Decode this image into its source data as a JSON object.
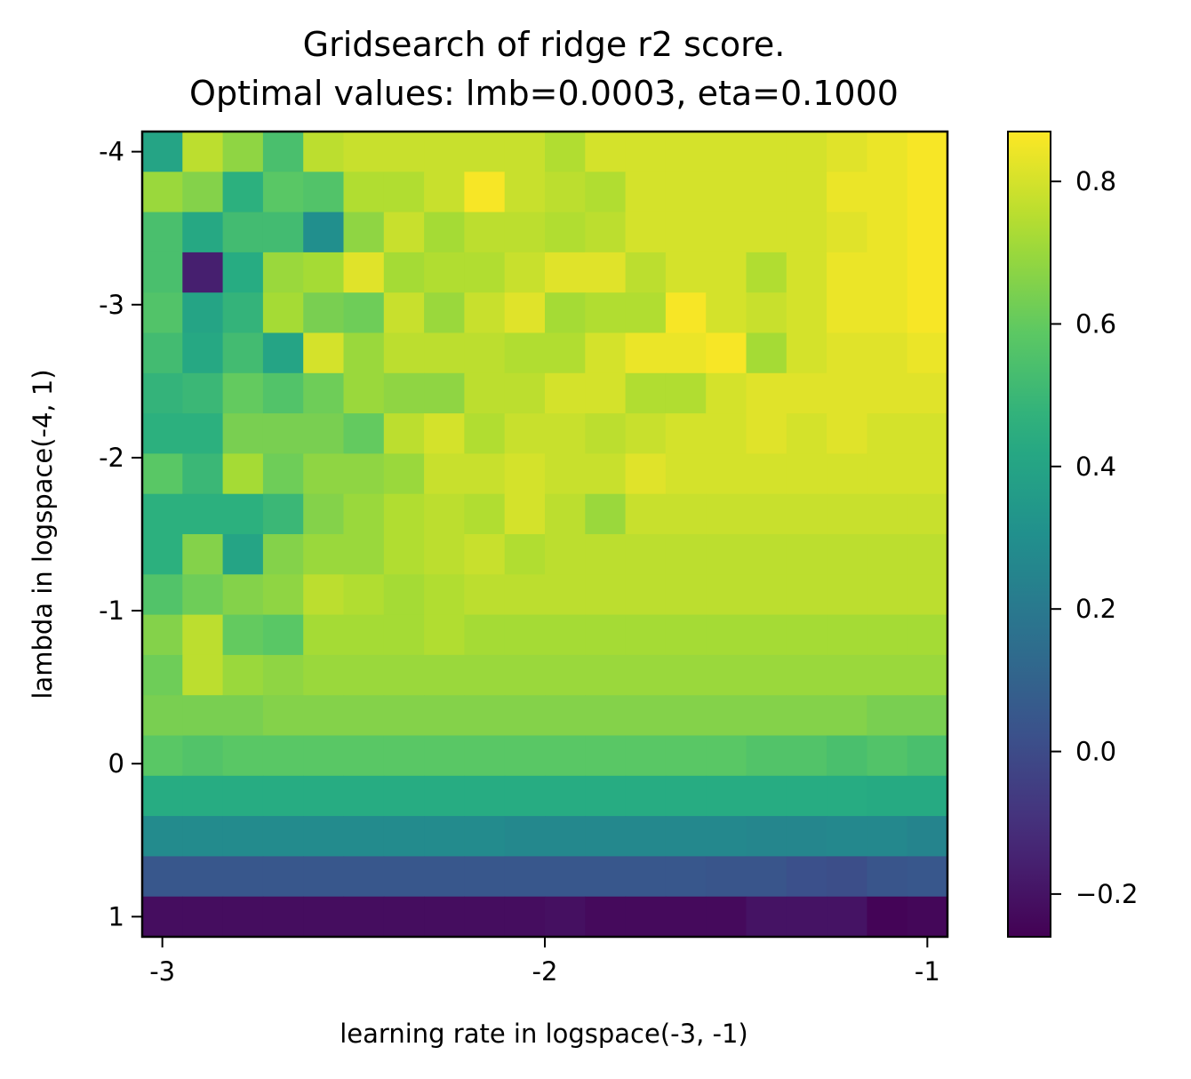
{
  "chart_data": {
    "type": "heatmap",
    "title": "Gridsearch of ridge r2 score.",
    "subtitle": "Optimal values: lmb=0.0003, eta=0.1000",
    "xlabel": "learning rate in logspace(-3, -1)",
    "ylabel": "lambda in logspace(-4, 1)",
    "colormap": "viridis",
    "color_range": [
      -0.26,
      0.87
    ],
    "x_range": [
      -3,
      -1
    ],
    "y_range": [
      -4,
      1
    ],
    "x_ticks": [
      {
        "value": -3,
        "label": "-3"
      },
      {
        "value": -2,
        "label": "-2"
      },
      {
        "value": -1,
        "label": "-1"
      }
    ],
    "y_ticks": [
      {
        "value": -4,
        "label": "-4"
      },
      {
        "value": -3,
        "label": "-3"
      },
      {
        "value": -2,
        "label": "-2"
      },
      {
        "value": -1,
        "label": "-1"
      },
      {
        "value": 0,
        "label": "0"
      },
      {
        "value": 1,
        "label": "1"
      }
    ],
    "colorbar_ticks": [
      {
        "value": 0.8,
        "label": "0.8"
      },
      {
        "value": 0.6,
        "label": "0.6"
      },
      {
        "value": 0.4,
        "label": "0.4"
      },
      {
        "value": 0.2,
        "label": "0.2"
      },
      {
        "value": 0.0,
        "label": "0.0"
      },
      {
        "value": -0.2,
        "label": "−0.2"
      }
    ],
    "values": [
      [
        0.4,
        0.76,
        0.68,
        0.54,
        0.76,
        0.78,
        0.78,
        0.78,
        0.78,
        0.78,
        0.74,
        0.8,
        0.8,
        0.8,
        0.8,
        0.8,
        0.8,
        0.82,
        0.84,
        0.86
      ],
      [
        0.7,
        0.66,
        0.46,
        0.58,
        0.56,
        0.74,
        0.74,
        0.78,
        0.86,
        0.78,
        0.76,
        0.74,
        0.8,
        0.8,
        0.8,
        0.8,
        0.8,
        0.84,
        0.84,
        0.86
      ],
      [
        0.54,
        0.42,
        0.52,
        0.52,
        0.3,
        0.68,
        0.78,
        0.72,
        0.76,
        0.76,
        0.74,
        0.76,
        0.8,
        0.8,
        0.8,
        0.8,
        0.8,
        0.82,
        0.84,
        0.86
      ],
      [
        0.54,
        -0.16,
        0.44,
        0.7,
        0.72,
        0.82,
        0.72,
        0.74,
        0.74,
        0.78,
        0.82,
        0.82,
        0.76,
        0.8,
        0.8,
        0.74,
        0.8,
        0.84,
        0.84,
        0.86
      ],
      [
        0.56,
        0.4,
        0.48,
        0.72,
        0.64,
        0.62,
        0.78,
        0.7,
        0.78,
        0.82,
        0.72,
        0.74,
        0.74,
        0.86,
        0.8,
        0.78,
        0.8,
        0.84,
        0.84,
        0.86
      ],
      [
        0.52,
        0.42,
        0.52,
        0.4,
        0.8,
        0.7,
        0.76,
        0.76,
        0.76,
        0.74,
        0.74,
        0.8,
        0.84,
        0.84,
        0.86,
        0.72,
        0.8,
        0.82,
        0.82,
        0.84
      ],
      [
        0.48,
        0.5,
        0.6,
        0.56,
        0.62,
        0.7,
        0.68,
        0.68,
        0.76,
        0.76,
        0.8,
        0.8,
        0.74,
        0.74,
        0.8,
        0.82,
        0.82,
        0.82,
        0.82,
        0.82
      ],
      [
        0.46,
        0.46,
        0.64,
        0.64,
        0.64,
        0.6,
        0.76,
        0.8,
        0.74,
        0.78,
        0.78,
        0.76,
        0.78,
        0.8,
        0.8,
        0.82,
        0.8,
        0.82,
        0.8,
        0.8
      ],
      [
        0.58,
        0.5,
        0.72,
        0.62,
        0.68,
        0.68,
        0.7,
        0.78,
        0.78,
        0.8,
        0.78,
        0.78,
        0.82,
        0.8,
        0.8,
        0.8,
        0.8,
        0.8,
        0.8,
        0.8
      ],
      [
        0.46,
        0.46,
        0.46,
        0.5,
        0.66,
        0.7,
        0.74,
        0.76,
        0.74,
        0.8,
        0.76,
        0.7,
        0.78,
        0.78,
        0.78,
        0.78,
        0.78,
        0.78,
        0.78,
        0.78
      ],
      [
        0.46,
        0.66,
        0.4,
        0.66,
        0.7,
        0.7,
        0.74,
        0.76,
        0.78,
        0.74,
        0.76,
        0.76,
        0.76,
        0.76,
        0.76,
        0.76,
        0.76,
        0.76,
        0.76,
        0.76
      ],
      [
        0.56,
        0.62,
        0.66,
        0.68,
        0.76,
        0.74,
        0.72,
        0.74,
        0.76,
        0.76,
        0.76,
        0.76,
        0.76,
        0.76,
        0.76,
        0.76,
        0.76,
        0.76,
        0.76,
        0.76
      ],
      [
        0.66,
        0.76,
        0.6,
        0.58,
        0.72,
        0.72,
        0.72,
        0.74,
        0.72,
        0.72,
        0.72,
        0.72,
        0.72,
        0.72,
        0.72,
        0.72,
        0.72,
        0.72,
        0.72,
        0.72
      ],
      [
        0.62,
        0.76,
        0.7,
        0.68,
        0.7,
        0.7,
        0.7,
        0.7,
        0.7,
        0.7,
        0.7,
        0.7,
        0.7,
        0.7,
        0.7,
        0.7,
        0.7,
        0.7,
        0.7,
        0.7
      ],
      [
        0.64,
        0.64,
        0.64,
        0.66,
        0.66,
        0.66,
        0.66,
        0.66,
        0.66,
        0.66,
        0.66,
        0.66,
        0.66,
        0.66,
        0.66,
        0.66,
        0.66,
        0.66,
        0.64,
        0.64
      ],
      [
        0.58,
        0.56,
        0.58,
        0.58,
        0.58,
        0.58,
        0.58,
        0.58,
        0.58,
        0.58,
        0.58,
        0.58,
        0.58,
        0.58,
        0.58,
        0.56,
        0.56,
        0.54,
        0.56,
        0.54
      ],
      [
        0.44,
        0.44,
        0.44,
        0.44,
        0.44,
        0.44,
        0.44,
        0.44,
        0.44,
        0.44,
        0.44,
        0.44,
        0.44,
        0.44,
        0.44,
        0.44,
        0.44,
        0.44,
        0.43,
        0.43
      ],
      [
        0.28,
        0.28,
        0.28,
        0.28,
        0.28,
        0.28,
        0.28,
        0.28,
        0.28,
        0.27,
        0.27,
        0.27,
        0.27,
        0.27,
        0.27,
        0.26,
        0.26,
        0.27,
        0.27,
        0.25
      ],
      [
        0.05,
        0.05,
        0.05,
        0.05,
        0.05,
        0.05,
        0.05,
        0.05,
        0.05,
        0.05,
        0.05,
        0.05,
        0.05,
        0.05,
        0.04,
        0.04,
        0.02,
        0.01,
        0.04,
        0.05
      ],
      [
        -0.22,
        -0.22,
        -0.22,
        -0.22,
        -0.22,
        -0.22,
        -0.22,
        -0.22,
        -0.22,
        -0.22,
        -0.21,
        -0.23,
        -0.23,
        -0.23,
        -0.23,
        -0.2,
        -0.2,
        -0.2,
        -0.25,
        -0.24
      ]
    ]
  }
}
